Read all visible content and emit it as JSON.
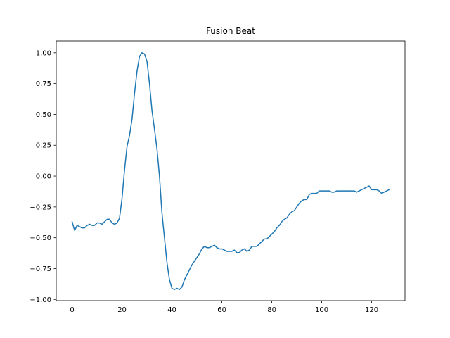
{
  "chart_data": {
    "type": "line",
    "title": "Fusion Beat",
    "xlabel": "",
    "ylabel": "",
    "xlim": [
      -6.35,
      133.35
    ],
    "ylim": [
      -1.0098,
      1.096
    ],
    "xticks": [
      0,
      20,
      40,
      60,
      80,
      100,
      120
    ],
    "yticks": [
      -1.0,
      -0.75,
      -0.5,
      -0.25,
      0.0,
      0.25,
      0.5,
      0.75,
      1.0
    ],
    "xtick_labels": [
      "0",
      "20",
      "40",
      "60",
      "80",
      "100",
      "120"
    ],
    "ytick_labels": [
      "−1.00",
      "−0.75",
      "−0.50",
      "−0.25",
      "0.00",
      "0.25",
      "0.50",
      "0.75",
      "1.00"
    ],
    "grid": false,
    "legend": "none",
    "colors": {
      "line": "#1f77b4",
      "axes": "#000000",
      "background": "#ffffff"
    },
    "series": [
      {
        "x": [
          0,
          1,
          2,
          3,
          4,
          5,
          6,
          7,
          8,
          9,
          10,
          11,
          12,
          13,
          14,
          15,
          16,
          17,
          18,
          19,
          20,
          21,
          22,
          23,
          24,
          25,
          26,
          27,
          28,
          29,
          30,
          31,
          32,
          33,
          34,
          35,
          36,
          37,
          38,
          39,
          40,
          41,
          42,
          43,
          44,
          45,
          46,
          47,
          48,
          49,
          50,
          51,
          52,
          53,
          54,
          55,
          56,
          57,
          58,
          59,
          60,
          61,
          62,
          63,
          64,
          65,
          66,
          67,
          68,
          69,
          70,
          71,
          72,
          73,
          74,
          75,
          76,
          77,
          78,
          79,
          80,
          81,
          82,
          83,
          84,
          85,
          86,
          87,
          88,
          89,
          90,
          91,
          92,
          93,
          94,
          95,
          96,
          97,
          98,
          99,
          100,
          101,
          102,
          103,
          104,
          105,
          106,
          107,
          108,
          109,
          110,
          111,
          112,
          113,
          114,
          115,
          116,
          117,
          118,
          119,
          120,
          121,
          122,
          123,
          124,
          125,
          126,
          127
        ],
        "y": [
          -0.37,
          -0.44,
          -0.4,
          -0.41,
          -0.42,
          -0.42,
          -0.4,
          -0.39,
          -0.4,
          -0.4,
          -0.38,
          -0.38,
          -0.39,
          -0.37,
          -0.35,
          -0.35,
          -0.38,
          -0.39,
          -0.38,
          -0.34,
          -0.18,
          0.05,
          0.24,
          0.33,
          0.46,
          0.67,
          0.85,
          0.97,
          1.0,
          0.99,
          0.93,
          0.75,
          0.53,
          0.38,
          0.22,
          0.0,
          -0.3,
          -0.5,
          -0.7,
          -0.84,
          -0.91,
          -0.92,
          -0.91,
          -0.92,
          -0.9,
          -0.84,
          -0.8,
          -0.76,
          -0.72,
          -0.69,
          -0.66,
          -0.63,
          -0.59,
          -0.57,
          -0.58,
          -0.58,
          -0.57,
          -0.56,
          -0.58,
          -0.59,
          -0.59,
          -0.6,
          -0.61,
          -0.61,
          -0.61,
          -0.6,
          -0.62,
          -0.62,
          -0.6,
          -0.59,
          -0.61,
          -0.6,
          -0.57,
          -0.57,
          -0.57,
          -0.55,
          -0.53,
          -0.51,
          -0.51,
          -0.49,
          -0.47,
          -0.45,
          -0.42,
          -0.4,
          -0.37,
          -0.35,
          -0.34,
          -0.31,
          -0.29,
          -0.28,
          -0.25,
          -0.22,
          -0.2,
          -0.19,
          -0.19,
          -0.15,
          -0.14,
          -0.14,
          -0.14,
          -0.12,
          -0.12,
          -0.12,
          -0.12,
          -0.12,
          -0.13,
          -0.13,
          -0.12,
          -0.12,
          -0.12,
          -0.12,
          -0.12,
          -0.12,
          -0.12,
          -0.12,
          -0.13,
          -0.12,
          -0.11,
          -0.1,
          -0.09,
          -0.08,
          -0.11,
          -0.11,
          -0.11,
          -0.12,
          -0.14,
          -0.13,
          -0.12,
          -0.11
        ]
      }
    ]
  }
}
